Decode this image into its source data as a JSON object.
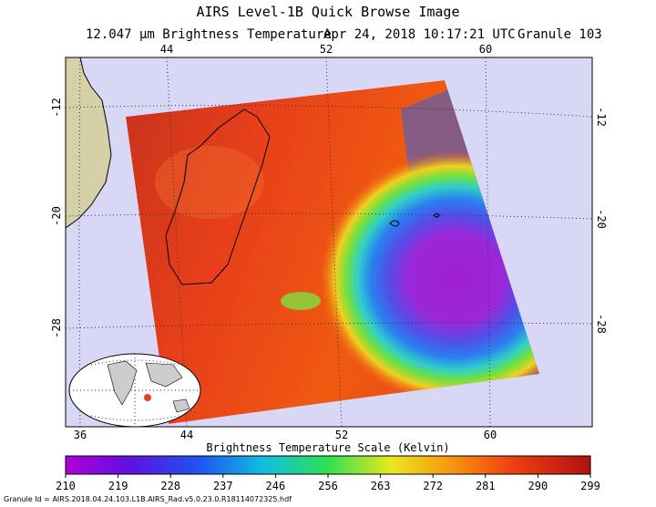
{
  "header": {
    "title": "AIRS Level-1B Quick Browse Image",
    "subtitle": [
      "12.047 μm Brightness Temperature",
      "Apr 24, 2018 10:17:21 UTC",
      "Granule 103"
    ]
  },
  "map": {
    "lon_labels_top": [
      "44",
      "52",
      "60"
    ],
    "lon_labels_bottom": [
      "36",
      "44",
      "52",
      "60"
    ],
    "lat_labels_left": [
      "-12",
      "-20",
      "-28"
    ],
    "lat_labels_right": [
      "-12",
      "-20",
      "-28"
    ]
  },
  "colorbar": {
    "title": "Brightness Temperature Scale (Kelvin)",
    "ticks": [
      "210",
      "219",
      "228",
      "237",
      "246",
      "256",
      "263",
      "272",
      "281",
      "290",
      "299"
    ]
  },
  "footer": "Granule Id = AIRS.2018.04.24.103.L1B.AIRS_Rad.v5.0.23.0.R18114072325.hdf"
}
